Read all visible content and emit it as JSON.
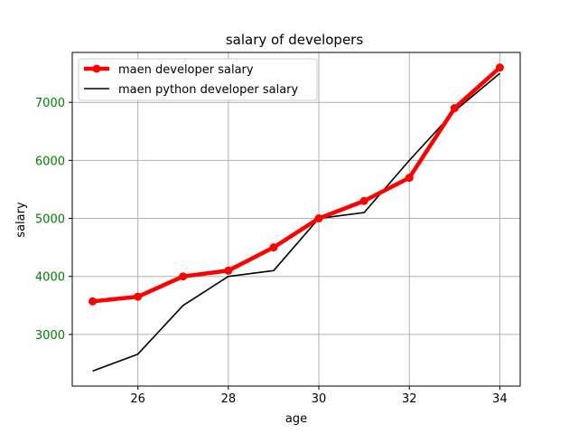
{
  "chart_data": {
    "type": "line",
    "title": "salary of developers",
    "xlabel": "age",
    "ylabel": "salary",
    "xlim": [
      24.55,
      34.45
    ],
    "ylim": [
      2110,
      7860
    ],
    "xticks": [
      26,
      28,
      30,
      32,
      34
    ],
    "yticks": [
      3000,
      4000,
      5000,
      6000,
      7000
    ],
    "ytick_color": "#008000",
    "xtick_color": "#000000",
    "grid": true,
    "legend_position": "top-left",
    "x": [
      25,
      26,
      27,
      28,
      29,
      30,
      31,
      32,
      33,
      34
    ],
    "series": [
      {
        "name": "maen developer salary",
        "color": "#ff0000",
        "linewidth": "thick",
        "marker": "circle",
        "values": [
          3570,
          3650,
          4000,
          4100,
          4500,
          5000,
          5300,
          5700,
          6900,
          7600
        ]
      },
      {
        "name": "maen python developer salary",
        "color": "#000000",
        "linewidth": "thin",
        "marker": "none",
        "values": [
          2370,
          2660,
          3500,
          4000,
          4100,
          5000,
          5100,
          6000,
          6850,
          7500
        ]
      }
    ]
  }
}
